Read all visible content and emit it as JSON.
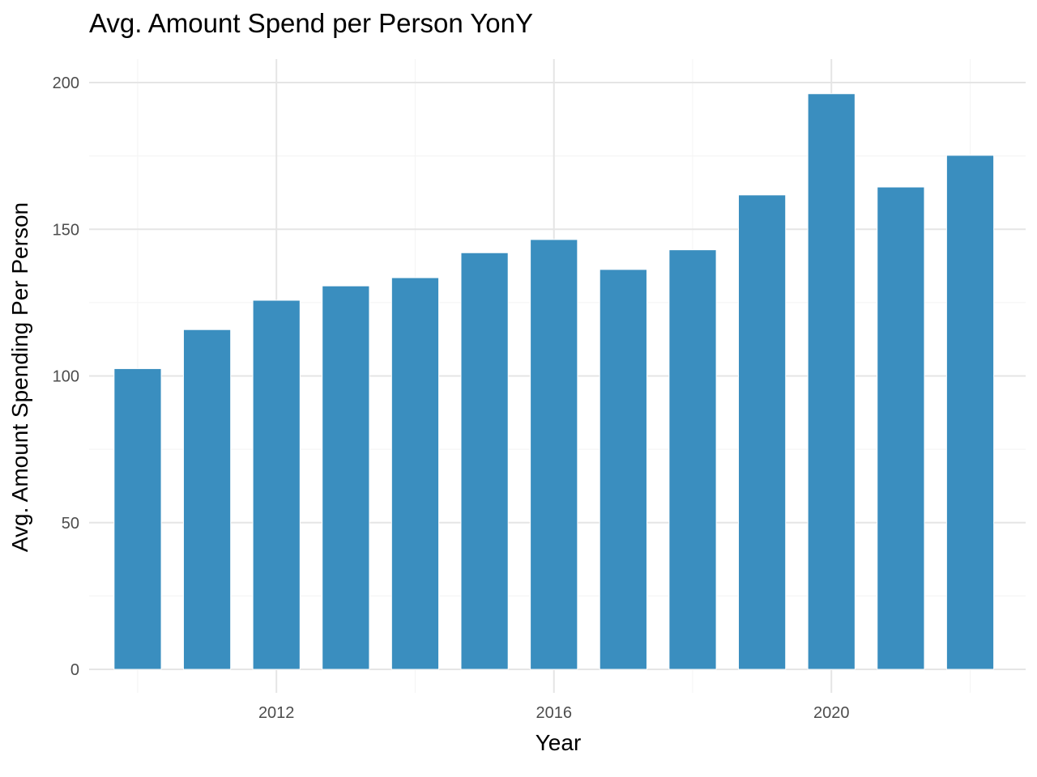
{
  "chart_data": {
    "type": "bar",
    "title": "Avg. Amount Spend per Person YonY",
    "xlabel": "Year",
    "ylabel": "Avg. Amount Spending Per Person",
    "x": [
      2010,
      2011,
      2012,
      2013,
      2014,
      2015,
      2016,
      2017,
      2018,
      2019,
      2020,
      2021,
      2022
    ],
    "values": [
      102.5,
      115.8,
      125.8,
      130.7,
      133.5,
      142.0,
      146.5,
      136.3,
      143.0,
      161.7,
      196.2,
      164.4,
      175.2
    ],
    "x_ticks": [
      2012,
      2016,
      2020
    ],
    "y_ticks": [
      0,
      50,
      100,
      150,
      200
    ],
    "xlim": [
      2009.3,
      2022.8
    ],
    "ylim": [
      -8,
      208
    ],
    "bar_color": "#3a8ebf",
    "grid": true,
    "legend": "none"
  }
}
